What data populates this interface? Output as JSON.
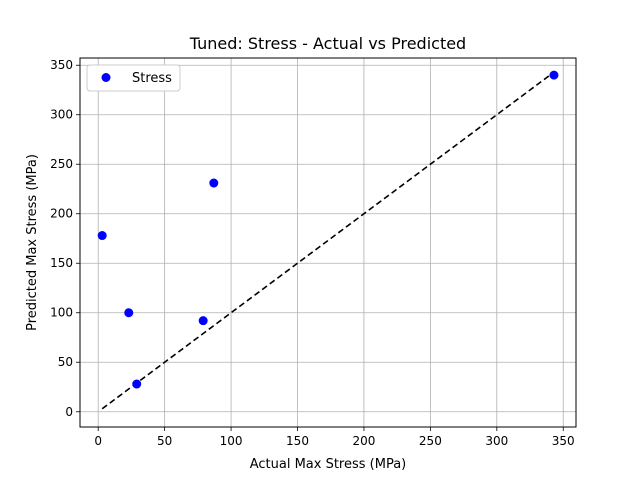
{
  "chart_data": {
    "type": "scatter",
    "title": "Tuned: Stress - Actual vs Predicted",
    "xlabel": "Actual Max Stress (MPa)",
    "ylabel": "Predicted Max Stress (MPa)",
    "xlim": [
      -13.7,
      359.6
    ],
    "ylim": [
      -15.4,
      357.3
    ],
    "xticks": [
      0,
      50,
      100,
      150,
      200,
      250,
      300,
      350
    ],
    "yticks": [
      0,
      50,
      100,
      150,
      200,
      250,
      300,
      350
    ],
    "grid": true,
    "legend_position": "top-left",
    "series": [
      {
        "name": "Stress",
        "color": "#0000ff",
        "points": [
          {
            "x": 3,
            "y": 178
          },
          {
            "x": 23,
            "y": 100
          },
          {
            "x": 29,
            "y": 28
          },
          {
            "x": 79,
            "y": 92
          },
          {
            "x": 87,
            "y": 231
          },
          {
            "x": 343,
            "y": 340
          }
        ]
      }
    ],
    "reference_line": {
      "color": "#000000",
      "style": "dashed",
      "from": [
        3,
        3
      ],
      "to": [
        343,
        343
      ]
    }
  }
}
